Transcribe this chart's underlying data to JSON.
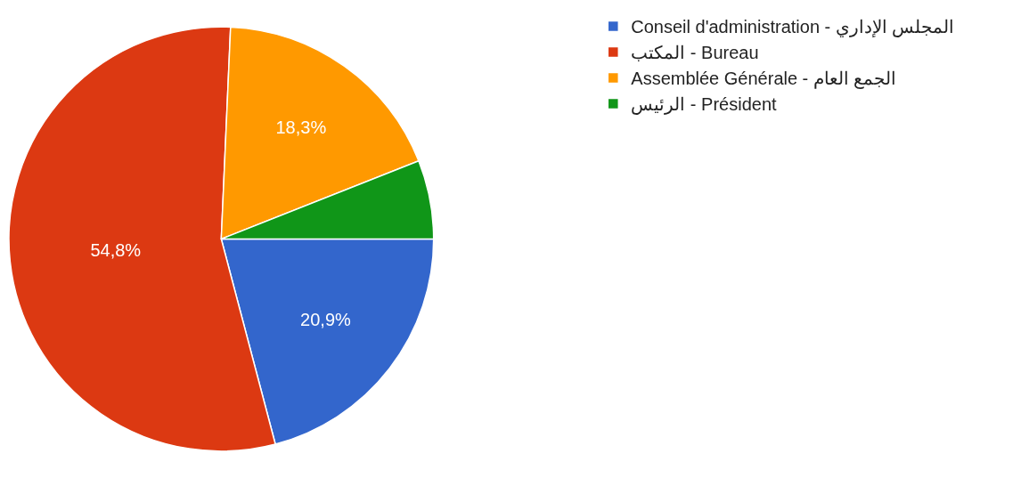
{
  "chart_data": {
    "type": "pie",
    "categories": [
      "Conseil d'administration - المجلس الإداري",
      "المكتب - Bureau",
      "Assemblée Générale - الجمع العام",
      "الرئيس - Président"
    ],
    "values": [
      20.9,
      54.8,
      18.3,
      6.0
    ],
    "colors": [
      "#3366cc",
      "#dc3912",
      "#ff9900",
      "#109618"
    ],
    "value_labels": [
      "20,9%",
      "54,8%",
      "18,3%",
      null
    ],
    "legend": "top right"
  }
}
